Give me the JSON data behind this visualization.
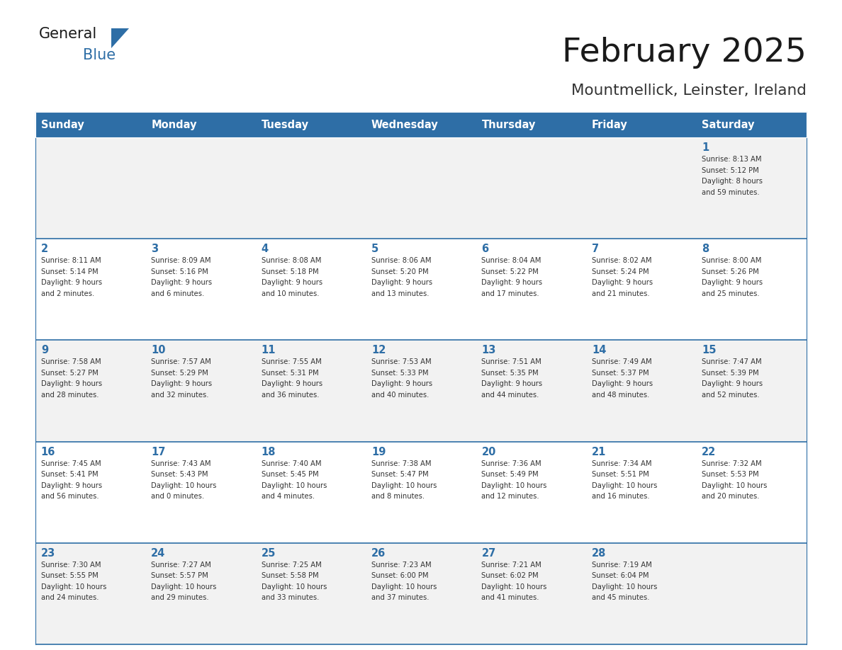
{
  "title": "February 2025",
  "subtitle": "Mountmellick, Leinster, Ireland",
  "days_of_week": [
    "Sunday",
    "Monday",
    "Tuesday",
    "Wednesday",
    "Thursday",
    "Friday",
    "Saturday"
  ],
  "header_bg": "#2E6EA6",
  "header_text": "#FFFFFF",
  "row_bg_odd": "#F2F2F2",
  "row_bg_even": "#FFFFFF",
  "border_color": "#2E6EA6",
  "day_num_color": "#2E6EA6",
  "info_color": "#333333",
  "title_color": "#1a1a1a",
  "subtitle_color": "#333333",
  "logo_general_color": "#1a1a1a",
  "logo_blue_color": "#2E6EA6",
  "weeks": [
    [
      {
        "day": "",
        "info": ""
      },
      {
        "day": "",
        "info": ""
      },
      {
        "day": "",
        "info": ""
      },
      {
        "day": "",
        "info": ""
      },
      {
        "day": "",
        "info": ""
      },
      {
        "day": "",
        "info": ""
      },
      {
        "day": "1",
        "info": "Sunrise: 8:13 AM\nSunset: 5:12 PM\nDaylight: 8 hours\nand 59 minutes."
      }
    ],
    [
      {
        "day": "2",
        "info": "Sunrise: 8:11 AM\nSunset: 5:14 PM\nDaylight: 9 hours\nand 2 minutes."
      },
      {
        "day": "3",
        "info": "Sunrise: 8:09 AM\nSunset: 5:16 PM\nDaylight: 9 hours\nand 6 minutes."
      },
      {
        "day": "4",
        "info": "Sunrise: 8:08 AM\nSunset: 5:18 PM\nDaylight: 9 hours\nand 10 minutes."
      },
      {
        "day": "5",
        "info": "Sunrise: 8:06 AM\nSunset: 5:20 PM\nDaylight: 9 hours\nand 13 minutes."
      },
      {
        "day": "6",
        "info": "Sunrise: 8:04 AM\nSunset: 5:22 PM\nDaylight: 9 hours\nand 17 minutes."
      },
      {
        "day": "7",
        "info": "Sunrise: 8:02 AM\nSunset: 5:24 PM\nDaylight: 9 hours\nand 21 minutes."
      },
      {
        "day": "8",
        "info": "Sunrise: 8:00 AM\nSunset: 5:26 PM\nDaylight: 9 hours\nand 25 minutes."
      }
    ],
    [
      {
        "day": "9",
        "info": "Sunrise: 7:58 AM\nSunset: 5:27 PM\nDaylight: 9 hours\nand 28 minutes."
      },
      {
        "day": "10",
        "info": "Sunrise: 7:57 AM\nSunset: 5:29 PM\nDaylight: 9 hours\nand 32 minutes."
      },
      {
        "day": "11",
        "info": "Sunrise: 7:55 AM\nSunset: 5:31 PM\nDaylight: 9 hours\nand 36 minutes."
      },
      {
        "day": "12",
        "info": "Sunrise: 7:53 AM\nSunset: 5:33 PM\nDaylight: 9 hours\nand 40 minutes."
      },
      {
        "day": "13",
        "info": "Sunrise: 7:51 AM\nSunset: 5:35 PM\nDaylight: 9 hours\nand 44 minutes."
      },
      {
        "day": "14",
        "info": "Sunrise: 7:49 AM\nSunset: 5:37 PM\nDaylight: 9 hours\nand 48 minutes."
      },
      {
        "day": "15",
        "info": "Sunrise: 7:47 AM\nSunset: 5:39 PM\nDaylight: 9 hours\nand 52 minutes."
      }
    ],
    [
      {
        "day": "16",
        "info": "Sunrise: 7:45 AM\nSunset: 5:41 PM\nDaylight: 9 hours\nand 56 minutes."
      },
      {
        "day": "17",
        "info": "Sunrise: 7:43 AM\nSunset: 5:43 PM\nDaylight: 10 hours\nand 0 minutes."
      },
      {
        "day": "18",
        "info": "Sunrise: 7:40 AM\nSunset: 5:45 PM\nDaylight: 10 hours\nand 4 minutes."
      },
      {
        "day": "19",
        "info": "Sunrise: 7:38 AM\nSunset: 5:47 PM\nDaylight: 10 hours\nand 8 minutes."
      },
      {
        "day": "20",
        "info": "Sunrise: 7:36 AM\nSunset: 5:49 PM\nDaylight: 10 hours\nand 12 minutes."
      },
      {
        "day": "21",
        "info": "Sunrise: 7:34 AM\nSunset: 5:51 PM\nDaylight: 10 hours\nand 16 minutes."
      },
      {
        "day": "22",
        "info": "Sunrise: 7:32 AM\nSunset: 5:53 PM\nDaylight: 10 hours\nand 20 minutes."
      }
    ],
    [
      {
        "day": "23",
        "info": "Sunrise: 7:30 AM\nSunset: 5:55 PM\nDaylight: 10 hours\nand 24 minutes."
      },
      {
        "day": "24",
        "info": "Sunrise: 7:27 AM\nSunset: 5:57 PM\nDaylight: 10 hours\nand 29 minutes."
      },
      {
        "day": "25",
        "info": "Sunrise: 7:25 AM\nSunset: 5:58 PM\nDaylight: 10 hours\nand 33 minutes."
      },
      {
        "day": "26",
        "info": "Sunrise: 7:23 AM\nSunset: 6:00 PM\nDaylight: 10 hours\nand 37 minutes."
      },
      {
        "day": "27",
        "info": "Sunrise: 7:21 AM\nSunset: 6:02 PM\nDaylight: 10 hours\nand 41 minutes."
      },
      {
        "day": "28",
        "info": "Sunrise: 7:19 AM\nSunset: 6:04 PM\nDaylight: 10 hours\nand 45 minutes."
      },
      {
        "day": "",
        "info": ""
      }
    ]
  ]
}
